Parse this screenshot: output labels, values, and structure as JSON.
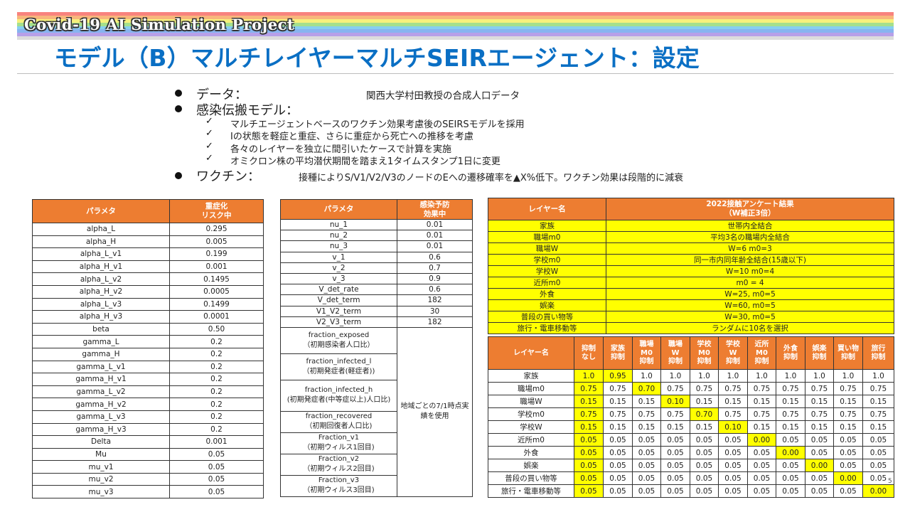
{
  "header": {
    "banner_title": "Covid-19 AI Simulation Project",
    "page_title": "モデル（B）マルチレイヤーマルチSEIRエージェント：設定",
    "rainbow_colors": [
      "#f8837e",
      "#f8b67c",
      "#f6f07c",
      "#a5e08c",
      "#86cff0",
      "#87b4f0",
      "#b7a0e8",
      "#dcdcdc"
    ]
  },
  "bullets": {
    "data_label": "データ：",
    "data_value": "関西大学村田教授の合成人口データ",
    "model_label": "感染伝搬モデル：",
    "model_items": [
      "マルチエージェントベースのワクチン効果考慮後のSEIRSモデルを採用",
      "Iの状態を軽症と重症、さらに重症から死亡への推移を考慮",
      "各々のレイヤーを独立に間引いたケースで計算を実施",
      "オミクロン株の平均潜伏期間を踏まえ1タイムスタンプ1日に変更"
    ],
    "vaccine_label": "ワクチン：",
    "vaccine_value": "接種によりS/V1/V2/V3のノードのEへの遷移確率を▲X%低下。ワクチン効果は段階的に減衰"
  },
  "table1": {
    "headers": [
      "パラメタ",
      "重症化\nリスク中"
    ],
    "rows": [
      [
        "alpha_L",
        "0.295"
      ],
      [
        "alpha_H",
        "0.005"
      ],
      [
        "alpha_L_v1",
        "0.199"
      ],
      [
        "alpha_H_v1",
        "0.001"
      ],
      [
        "alpha_L_v2",
        "0.1495"
      ],
      [
        "alpha_H_v2",
        "0.0005"
      ],
      [
        "alpha_L_v3",
        "0.1499"
      ],
      [
        "alpha_H_v3",
        "0.0001"
      ],
      [
        "beta",
        "0.50"
      ],
      [
        "gamma_L",
        "0.2"
      ],
      [
        "gamma_H",
        "0.2"
      ],
      [
        "gamma_L_v1",
        "0.2"
      ],
      [
        "gamma_H_v1",
        "0.2"
      ],
      [
        "gamma_L_v2",
        "0.2"
      ],
      [
        "gamma_H_v2",
        "0.2"
      ],
      [
        "gamma_L_v3",
        "0.2"
      ],
      [
        "gamma_H_v3",
        "0.2"
      ],
      [
        "Delta",
        "0.001"
      ],
      [
        "Mu",
        "0.05"
      ],
      [
        "mu_v1",
        "0.05"
      ],
      [
        "mu_v2",
        "0.05"
      ],
      [
        "mu_v3",
        "0.05"
      ]
    ]
  },
  "table2": {
    "headers": [
      "パラメタ",
      "感染予防\n効果中"
    ],
    "rows": [
      [
        "nu_1",
        "0.01"
      ],
      [
        "nu_2",
        "0.01"
      ],
      [
        "nu_3",
        "0.01"
      ],
      [
        "v_1",
        "0.6"
      ],
      [
        "v_2",
        "0.7"
      ],
      [
        "v_3",
        "0.9"
      ],
      [
        "V_det_rate",
        "0.6"
      ],
      [
        "V_det_term",
        "182"
      ],
      [
        "V1_V2_term",
        "30"
      ],
      [
        "V2_V3_term",
        "182"
      ]
    ],
    "fraction_rows": [
      "fraction_exposed\n（初期感染者人口比）",
      "fraction_infected_l\n（初期発症者(軽症者))",
      "fraction_infected_h\n(初期発症者(中等症以上)人口比)",
      "fraction_recovered\n（初期回復者人口比)",
      "Fraction_v1\n（初期ウィルス1回目)",
      "Fraction_v2\n（初期ウィルス2回目)",
      "Fraction_v3\n（初期ウィルス3回目)"
    ],
    "fraction_value": "地域ごとの7/1時点実績を使用"
  },
  "table3": {
    "headers": [
      "レイヤー名",
      "2022接触アンケート結果\n（W補正3倍）"
    ],
    "rows": [
      [
        "家族",
        "世帯内全結合"
      ],
      [
        "職場m0",
        "平均3名の職場内全結合"
      ],
      [
        "職場W",
        "W=6 m0=3"
      ],
      [
        "学校m0",
        "同一市内同年齢全結合(15歳以下)"
      ],
      [
        "学校W",
        "W=10 m0=4"
      ],
      [
        "近所m0",
        "m0 = 4"
      ],
      [
        "外食",
        "W=25, m0=5"
      ],
      [
        "娯楽",
        "W=60, m0=5"
      ],
      [
        "普段の買い物等",
        "W=30, m0=5"
      ],
      [
        "旅行・電車移動等",
        "ランダムに10名を選択"
      ]
    ]
  },
  "table4": {
    "headers": [
      "レイヤー名",
      "抑制\nなし",
      "家族\n抑制",
      "職場\nM0\n抑制",
      "職場\nW\n抑制",
      "学校\nM0\n抑制",
      "学校\nW\n抑制",
      "近所\nM0\n抑制",
      "外食\n抑制",
      "娯楽\n抑制",
      "買い物\n抑制",
      "旅行\n抑制"
    ],
    "rows": [
      {
        "name": "家族",
        "values": [
          "1.0",
          "0.95",
          "1.0",
          "1.0",
          "1.0",
          "1.0",
          "1.0",
          "1.0",
          "1.0",
          "1.0",
          "1.0"
        ],
        "hl": [
          0,
          1
        ]
      },
      {
        "name": "職場m0",
        "values": [
          "0.75",
          "0.75",
          "0.70",
          "0.75",
          "0.75",
          "0.75",
          "0.75",
          "0.75",
          "0.75",
          "0.75",
          "0.75"
        ],
        "hl": [
          0,
          2
        ]
      },
      {
        "name": "職場W",
        "values": [
          "0.15",
          "0.15",
          "0.15",
          "0.10",
          "0.15",
          "0.15",
          "0.15",
          "0.15",
          "0.15",
          "0.15",
          "0.15"
        ],
        "hl": [
          0,
          3
        ]
      },
      {
        "name": "学校m0",
        "values": [
          "0.75",
          "0.75",
          "0.75",
          "0.75",
          "0.70",
          "0.75",
          "0.75",
          "0.75",
          "0.75",
          "0.75",
          "0.75"
        ],
        "hl": [
          0,
          4
        ]
      },
      {
        "name": "学校W",
        "values": [
          "0.15",
          "0.15",
          "0.15",
          "0.15",
          "0.15",
          "0.10",
          "0.15",
          "0.15",
          "0.15",
          "0.15",
          "0.15"
        ],
        "hl": [
          0,
          5
        ]
      },
      {
        "name": "近所m0",
        "values": [
          "0.05",
          "0.05",
          "0.05",
          "0.05",
          "0.05",
          "0.05",
          "0.00",
          "0.05",
          "0.05",
          "0.05",
          "0.05"
        ],
        "hl": [
          0,
          6
        ]
      },
      {
        "name": "外食",
        "values": [
          "0.05",
          "0.05",
          "0.05",
          "0.05",
          "0.05",
          "0.05",
          "0.05",
          "0.00",
          "0.05",
          "0.05",
          "0.05"
        ],
        "hl": [
          0,
          7
        ]
      },
      {
        "name": "娯楽",
        "values": [
          "0.05",
          "0.05",
          "0.05",
          "0.05",
          "0.05",
          "0.05",
          "0.05",
          "0.05",
          "0.00",
          "0.05",
          "0.05"
        ],
        "hl": [
          0,
          8
        ]
      },
      {
        "name": "普段の買い物等",
        "values": [
          "0.05",
          "0.05",
          "0.05",
          "0.05",
          "0.05",
          "0.05",
          "0.05",
          "0.05",
          "0.05",
          "0.00",
          "0.05"
        ],
        "hl": [
          0,
          9
        ]
      },
      {
        "name": "旅行・電車移動等",
        "values": [
          "0.05",
          "0.05",
          "0.05",
          "0.05",
          "0.05",
          "0.05",
          "0.05",
          "0.05",
          "0.05",
          "0.05",
          "0.00"
        ],
        "hl": [
          0,
          10
        ]
      }
    ]
  },
  "page_number": "5"
}
